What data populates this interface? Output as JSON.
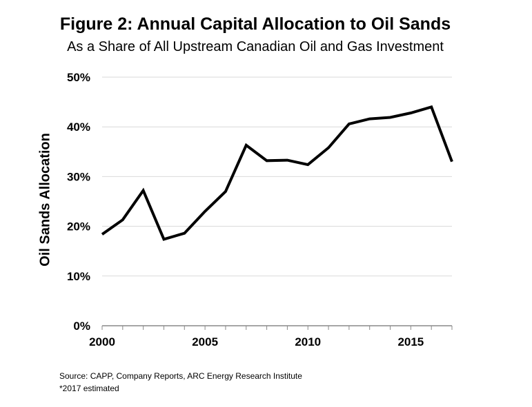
{
  "title": "Figure 2: Annual Capital Allocation to Oil Sands",
  "subtitle": "As a Share of All Upstream Canadian Oil and Gas Investment",
  "source_line": "Source: CAPP, Company Reports, ARC Energy Research Institute",
  "note_line": "*2017 estimated",
  "chart_data": {
    "type": "line",
    "title": "Figure 2: Annual Capital Allocation to Oil Sands",
    "subtitle": "As a Share of All Upstream Canadian Oil and Gas Investment",
    "xlabel": "",
    "ylabel": "Oil Sands Allocation",
    "xlim": [
      2000,
      2017
    ],
    "ylim": [
      0,
      50
    ],
    "x_ticks": [
      2000,
      2005,
      2010,
      2015
    ],
    "x_tick_labels": [
      "2000",
      "2005",
      "2010",
      "2015"
    ],
    "y_ticks": [
      0,
      10,
      20,
      30,
      40,
      50
    ],
    "y_tick_labels": [
      "0%",
      "10%",
      "20%",
      "30%",
      "40%",
      "50%"
    ],
    "grid": "horizontal",
    "line_color": "#000000",
    "series": [
      {
        "x": [
          2000,
          2001,
          2002,
          2003,
          2004,
          2005,
          2006,
          2007,
          2008,
          2009,
          2010,
          2011,
          2012,
          2013,
          2014,
          2015,
          2016,
          2017
        ],
        "values": [
          18.4,
          21.3,
          27.2,
          17.4,
          18.6,
          23.0,
          27.0,
          36.3,
          33.2,
          33.3,
          32.4,
          35.8,
          40.6,
          41.6,
          41.9,
          42.8,
          44.0,
          33.0
        ]
      }
    ]
  }
}
